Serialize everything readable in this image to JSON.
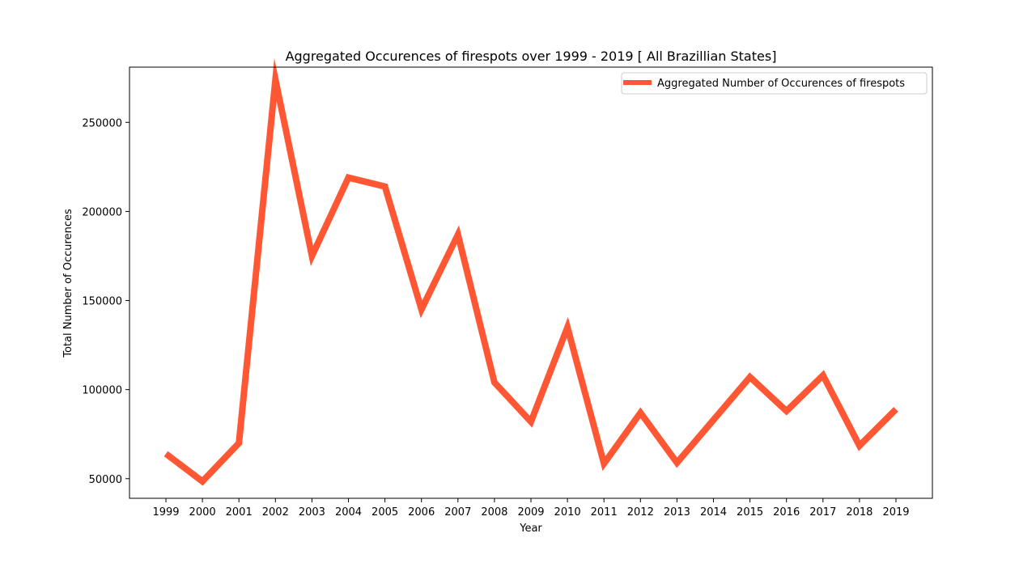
{
  "chart_data": {
    "type": "line",
    "title": "Aggregated Occurences of firespots over 1999 - 2019 [ All Brazillian States]",
    "xlabel": "Year",
    "ylabel": "Total Number of Occurences",
    "x": [
      "1999",
      "2000",
      "2001",
      "2002",
      "2003",
      "2004",
      "2005",
      "2006",
      "2007",
      "2008",
      "2009",
      "2010",
      "2011",
      "2012",
      "2013",
      "2014",
      "2015",
      "2016",
      "2017",
      "2018",
      "2019"
    ],
    "series": [
      {
        "name": "Aggregated Number of Occurences of firespots",
        "values": [
          64000,
          48500,
          70000,
          274000,
          175000,
          219000,
          214000,
          145000,
          187000,
          104000,
          82000,
          135000,
          58500,
          87000,
          59000,
          83000,
          107000,
          88000,
          108000,
          68500,
          89000
        ],
        "color": "#ff5733"
      }
    ],
    "ylim": [
      39000,
      281000
    ],
    "yticks": [
      "50000",
      "100000",
      "150000",
      "200000",
      "250000"
    ],
    "grid": false,
    "legend_position": "top-right"
  }
}
